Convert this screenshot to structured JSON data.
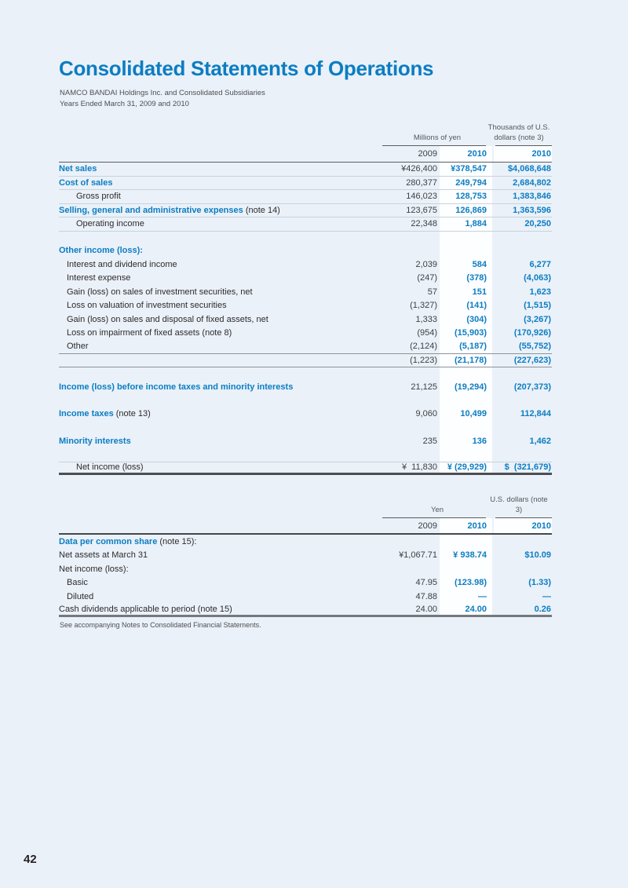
{
  "page": {
    "title": "Consolidated Statements of Operations",
    "subtitle1": "NAMCO BANDAI Holdings Inc. and Consolidated Subsidiaries",
    "subtitle2": "Years Ended March 31, 2009 and 2010",
    "footnote": "See accompanying Notes to Consolidated Financial Statements.",
    "page_number": "42"
  },
  "colors": {
    "accent_blue": "#0c7dc2",
    "page_background": "#eaf1f9",
    "highlight_band": "#fdfeff",
    "dark_text": "#2e2b2c"
  },
  "table1": {
    "unit_yen": "Millions of yen",
    "unit_usd": "Thousands of U.S. dollars (note 3)",
    "col_headers": [
      "2009",
      "2010",
      "2010"
    ],
    "rows": [
      {
        "label": "Net sales",
        "emph": true,
        "values": [
          "¥426,400",
          "¥378,547",
          "$4,068,648"
        ],
        "rule": "light"
      },
      {
        "label": "Cost of sales",
        "emph": true,
        "values": [
          "280,377",
          "249,794",
          "2,684,802"
        ],
        "rule": "light"
      },
      {
        "label": "Gross profit",
        "indent": 2,
        "values": [
          "146,023",
          "128,753",
          "1,383,846"
        ],
        "rule": "light"
      },
      {
        "label": "Selling, general and administrative expenses",
        "note": " (note 14)",
        "emph": true,
        "values": [
          "123,675",
          "126,869",
          "1,363,596"
        ],
        "rule": "light"
      },
      {
        "label": "Operating income",
        "indent": 2,
        "values": [
          "22,348",
          "1,884",
          "20,250"
        ],
        "rule": "light"
      },
      {
        "spacer": true,
        "h": 16
      },
      {
        "label": "Other income (loss):",
        "emph": true,
        "values": [
          "",
          "",
          ""
        ],
        "rule": "none"
      },
      {
        "label": "Interest and dividend income",
        "indent": 1,
        "values": [
          "2,039",
          "584",
          "6,277"
        ],
        "rule": "none"
      },
      {
        "label": "Interest expense",
        "indent": 1,
        "values": [
          "(247)",
          "(378)",
          "(4,063)"
        ],
        "rule": "none"
      },
      {
        "label": "Gain (loss) on sales of investment securities, net",
        "indent": 1,
        "values": [
          "57",
          "151",
          "1,623"
        ],
        "rule": "none"
      },
      {
        "label": "Loss on valuation of investment securities",
        "indent": 1,
        "values": [
          "(1,327)",
          "(141)",
          "(1,515)"
        ],
        "rule": "none"
      },
      {
        "label": "Gain (loss) on sales and disposal of fixed assets, net",
        "indent": 1,
        "values": [
          "1,333",
          "(304)",
          "(3,267)"
        ],
        "rule": "none"
      },
      {
        "label": "Loss on impairment of fixed assets (note 8)",
        "indent": 1,
        "values": [
          "(954)",
          "(15,903)",
          "(170,926)"
        ],
        "rule": "none"
      },
      {
        "label": "Other",
        "indent": 1,
        "values": [
          "(2,124)",
          "(5,187)",
          "(55,752)"
        ],
        "rule": "medium"
      },
      {
        "label": "",
        "values": [
          "(1,223)",
          "(21,178)",
          "(227,623)"
        ],
        "rule": "medium"
      },
      {
        "spacer": true,
        "h": 16
      },
      {
        "label": "Income (loss) before income taxes and minority interests",
        "emph": true,
        "values": [
          "21,125",
          "(19,294)",
          "(207,373)"
        ],
        "rule": "none"
      },
      {
        "spacer": true,
        "h": 17
      },
      {
        "label": "Income taxes",
        "note": " (note 13)",
        "emph": true,
        "values": [
          "9,060",
          "10,499",
          "112,844"
        ],
        "rule": "none"
      },
      {
        "spacer": true,
        "h": 17
      },
      {
        "label": "Minority interests",
        "emph": true,
        "values": [
          "235",
          "136",
          "1,462"
        ],
        "rule": "none"
      },
      {
        "spacer": true,
        "h": 17
      },
      {
        "label": "Net income (loss)",
        "indent": 2,
        "values": [
          "¥  11,830",
          "¥ (29,929)",
          "$  (321,679)"
        ],
        "rule": "thick",
        "top_rule": true
      }
    ]
  },
  "table2": {
    "unit_yen": "Yen",
    "unit_usd": "U.S. dollars (note 3)",
    "col_headers": [
      "2009",
      "2010",
      "2010"
    ],
    "rows": [
      {
        "label": "Data per common share",
        "note": " (note 15):",
        "emph": true,
        "values": [
          "",
          "",
          ""
        ],
        "rule": "none"
      },
      {
        "label": "Net assets at March 31",
        "values": [
          "¥1,067.71",
          "¥ 938.74",
          "$10.09"
        ],
        "rule": "none"
      },
      {
        "label": "Net income (loss):",
        "values": [
          "",
          "",
          ""
        ],
        "rule": "none"
      },
      {
        "label": "Basic",
        "indent": 1,
        "values": [
          "47.95",
          "(123.98)",
          "(1.33)"
        ],
        "rule": "none"
      },
      {
        "label": "Diluted",
        "indent": 1,
        "values": [
          "47.88",
          "—",
          "—"
        ],
        "rule": "none"
      },
      {
        "label": "Cash dividends applicable to period (note 15)",
        "values": [
          "24.00",
          "24.00",
          "0.26"
        ],
        "rule": "thick2"
      }
    ]
  }
}
